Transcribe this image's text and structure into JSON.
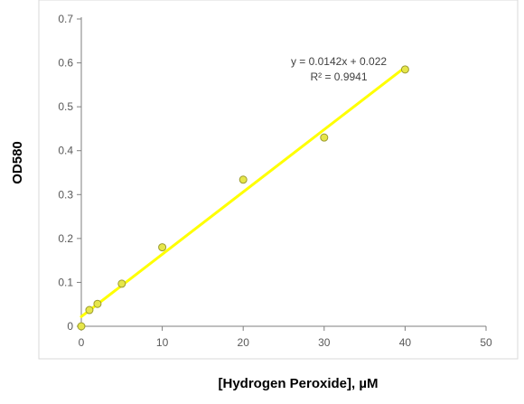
{
  "chart_data": {
    "type": "scatter",
    "xlabel": "[Hydrogen Peroxide], µM",
    "ylabel": "OD580",
    "xlim": [
      0,
      50
    ],
    "ylim": [
      0,
      0.7
    ],
    "xticks": [
      "0",
      "10",
      "20",
      "30",
      "40",
      "50"
    ],
    "yticks": [
      "0",
      "0.1",
      "0.2",
      "0.3",
      "0.4",
      "0.5",
      "0.6",
      "0.7"
    ],
    "grid": false,
    "points": [
      {
        "x": 0,
        "y": 0.0
      },
      {
        "x": 1,
        "y": 0.037
      },
      {
        "x": 2,
        "y": 0.051
      },
      {
        "x": 5,
        "y": 0.097
      },
      {
        "x": 10,
        "y": 0.18
      },
      {
        "x": 20,
        "y": 0.334
      },
      {
        "x": 30,
        "y": 0.43
      },
      {
        "x": 40,
        "y": 0.585
      }
    ],
    "trendline": {
      "type": "linear",
      "slope": 0.0142,
      "intercept": 0.022,
      "x_range": [
        0,
        40
      ],
      "equation": "y = 0.0142x + 0.022",
      "r_squared": "R² = 0.9941"
    },
    "colors": {
      "trendline": "#ffff00",
      "marker_fill": "#e6e64a",
      "marker_stroke": "#9b9b2e",
      "axis": "#7f7f7f",
      "frame": "#d9d9d9"
    }
  }
}
